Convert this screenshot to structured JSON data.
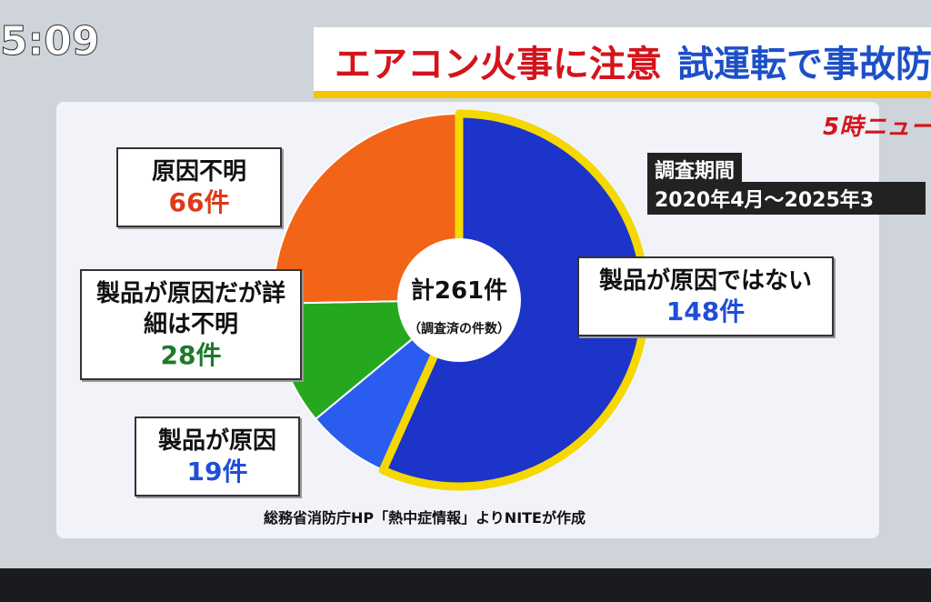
{
  "banner": {
    "clock": "5:09",
    "title_parts": [
      "エアコン火事に注意",
      "試運転で事故防"
    ],
    "logo": "5時ニュー"
  },
  "chart_data": {
    "type": "pie",
    "categories": [
      "製品が原因ではない",
      "製品が原因",
      "製品が原因だが詳細は不明",
      "原因不明"
    ],
    "values": [
      148,
      19,
      28,
      66
    ],
    "value_labels": [
      "148件",
      "19件",
      "28件",
      "66件"
    ],
    "colors": [
      "#1c34c8",
      "#2a5cf0",
      "#25a81e",
      "#f26418"
    ],
    "label_colors": [
      "#1f4fd8",
      "#1f4fd8",
      "#1f7a2a",
      "#e0381a"
    ],
    "highlight": 0,
    "center_label": "計261件",
    "center_note": "（調査済の件数）",
    "period_label": "調査期間",
    "period": "2020年4月～2025年3",
    "source": "総務省消防庁HP「熱中症情報」よりNITEが作成"
  }
}
